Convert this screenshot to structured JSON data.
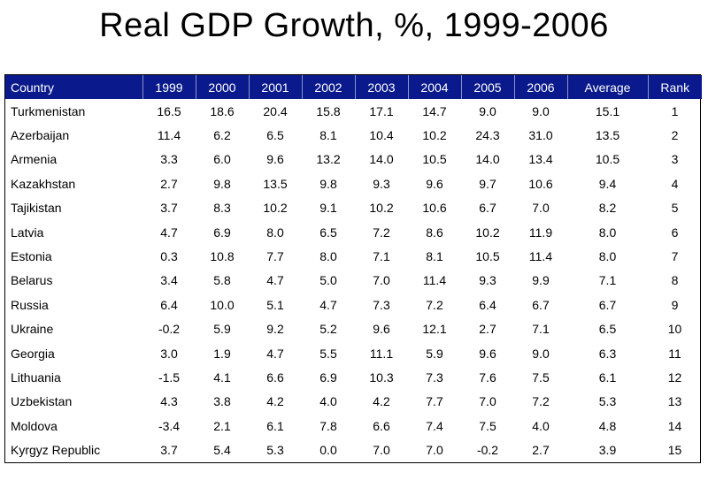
{
  "title": "Real GDP Growth, %, 1999-2006",
  "chart_data": {
    "type": "table",
    "title": "Real GDP Growth, %, 1999-2006",
    "columns": [
      "Country",
      "1999",
      "2000",
      "2001",
      "2002",
      "2003",
      "2004",
      "2005",
      "2006",
      "Average",
      "Rank"
    ],
    "header_color": "#0a1a8c",
    "rows": [
      {
        "country": "Turkmenistan",
        "values": [
          "16.5",
          "18.6",
          "20.4",
          "15.8",
          "17.1",
          "14.7",
          "9.0",
          "9.0"
        ],
        "average": "15.1",
        "rank": "1"
      },
      {
        "country": "Azerbaijan",
        "values": [
          "11.4",
          "6.2",
          "6.5",
          "8.1",
          "10.4",
          "10.2",
          "24.3",
          "31.0"
        ],
        "average": "13.5",
        "rank": "2"
      },
      {
        "country": "Armenia",
        "values": [
          "3.3",
          "6.0",
          "9.6",
          "13.2",
          "14.0",
          "10.5",
          "14.0",
          "13.4"
        ],
        "average": "10.5",
        "rank": "3"
      },
      {
        "country": "Kazakhstan",
        "values": [
          "2.7",
          "9.8",
          "13.5",
          "9.8",
          "9.3",
          "9.6",
          "9.7",
          "10.6"
        ],
        "average": "9.4",
        "rank": "4"
      },
      {
        "country": "Tajikistan",
        "values": [
          "3.7",
          "8.3",
          "10.2",
          "9.1",
          "10.2",
          "10.6",
          "6.7",
          "7.0"
        ],
        "average": "8.2",
        "rank": "5"
      },
      {
        "country": "Latvia",
        "values": [
          "4.7",
          "6.9",
          "8.0",
          "6.5",
          "7.2",
          "8.6",
          "10.2",
          "11.9"
        ],
        "average": "8.0",
        "rank": "6"
      },
      {
        "country": "Estonia",
        "values": [
          "0.3",
          "10.8",
          "7.7",
          "8.0",
          "7.1",
          "8.1",
          "10.5",
          "11.4"
        ],
        "average": "8.0",
        "rank": "7"
      },
      {
        "country": "Belarus",
        "values": [
          "3.4",
          "5.8",
          "4.7",
          "5.0",
          "7.0",
          "11.4",
          "9.3",
          "9.9"
        ],
        "average": "7.1",
        "rank": "8"
      },
      {
        "country": "Russia",
        "values": [
          "6.4",
          "10.0",
          "5.1",
          "4.7",
          "7.3",
          "7.2",
          "6.4",
          "6.7"
        ],
        "average": "6.7",
        "rank": "9"
      },
      {
        "country": "Ukraine",
        "values": [
          "-0.2",
          "5.9",
          "9.2",
          "5.2",
          "9.6",
          "12.1",
          "2.7",
          "7.1"
        ],
        "average": "6.5",
        "rank": "10"
      },
      {
        "country": "Georgia",
        "values": [
          "3.0",
          "1.9",
          "4.7",
          "5.5",
          "11.1",
          "5.9",
          "9.6",
          "9.0"
        ],
        "average": "6.3",
        "rank": "11"
      },
      {
        "country": "Lithuania",
        "values": [
          "-1.5",
          "4.1",
          "6.6",
          "6.9",
          "10.3",
          "7.3",
          "7.6",
          "7.5"
        ],
        "average": "6.1",
        "rank": "12"
      },
      {
        "country": "Uzbekistan",
        "values": [
          "4.3",
          "3.8",
          "4.2",
          "4.0",
          "4.2",
          "7.7",
          "7.0",
          "7.2"
        ],
        "average": "5.3",
        "rank": "13"
      },
      {
        "country": "Moldova",
        "values": [
          "-3.4",
          "2.1",
          "6.1",
          "7.8",
          "6.6",
          "7.4",
          "7.5",
          "4.0"
        ],
        "average": "4.8",
        "rank": "14"
      },
      {
        "country": "Kyrgyz Republic",
        "values": [
          "3.7",
          "5.4",
          "5.3",
          "0.0",
          "7.0",
          "7.0",
          "-0.2",
          "2.7"
        ],
        "average": "3.9",
        "rank": "15"
      }
    ]
  }
}
